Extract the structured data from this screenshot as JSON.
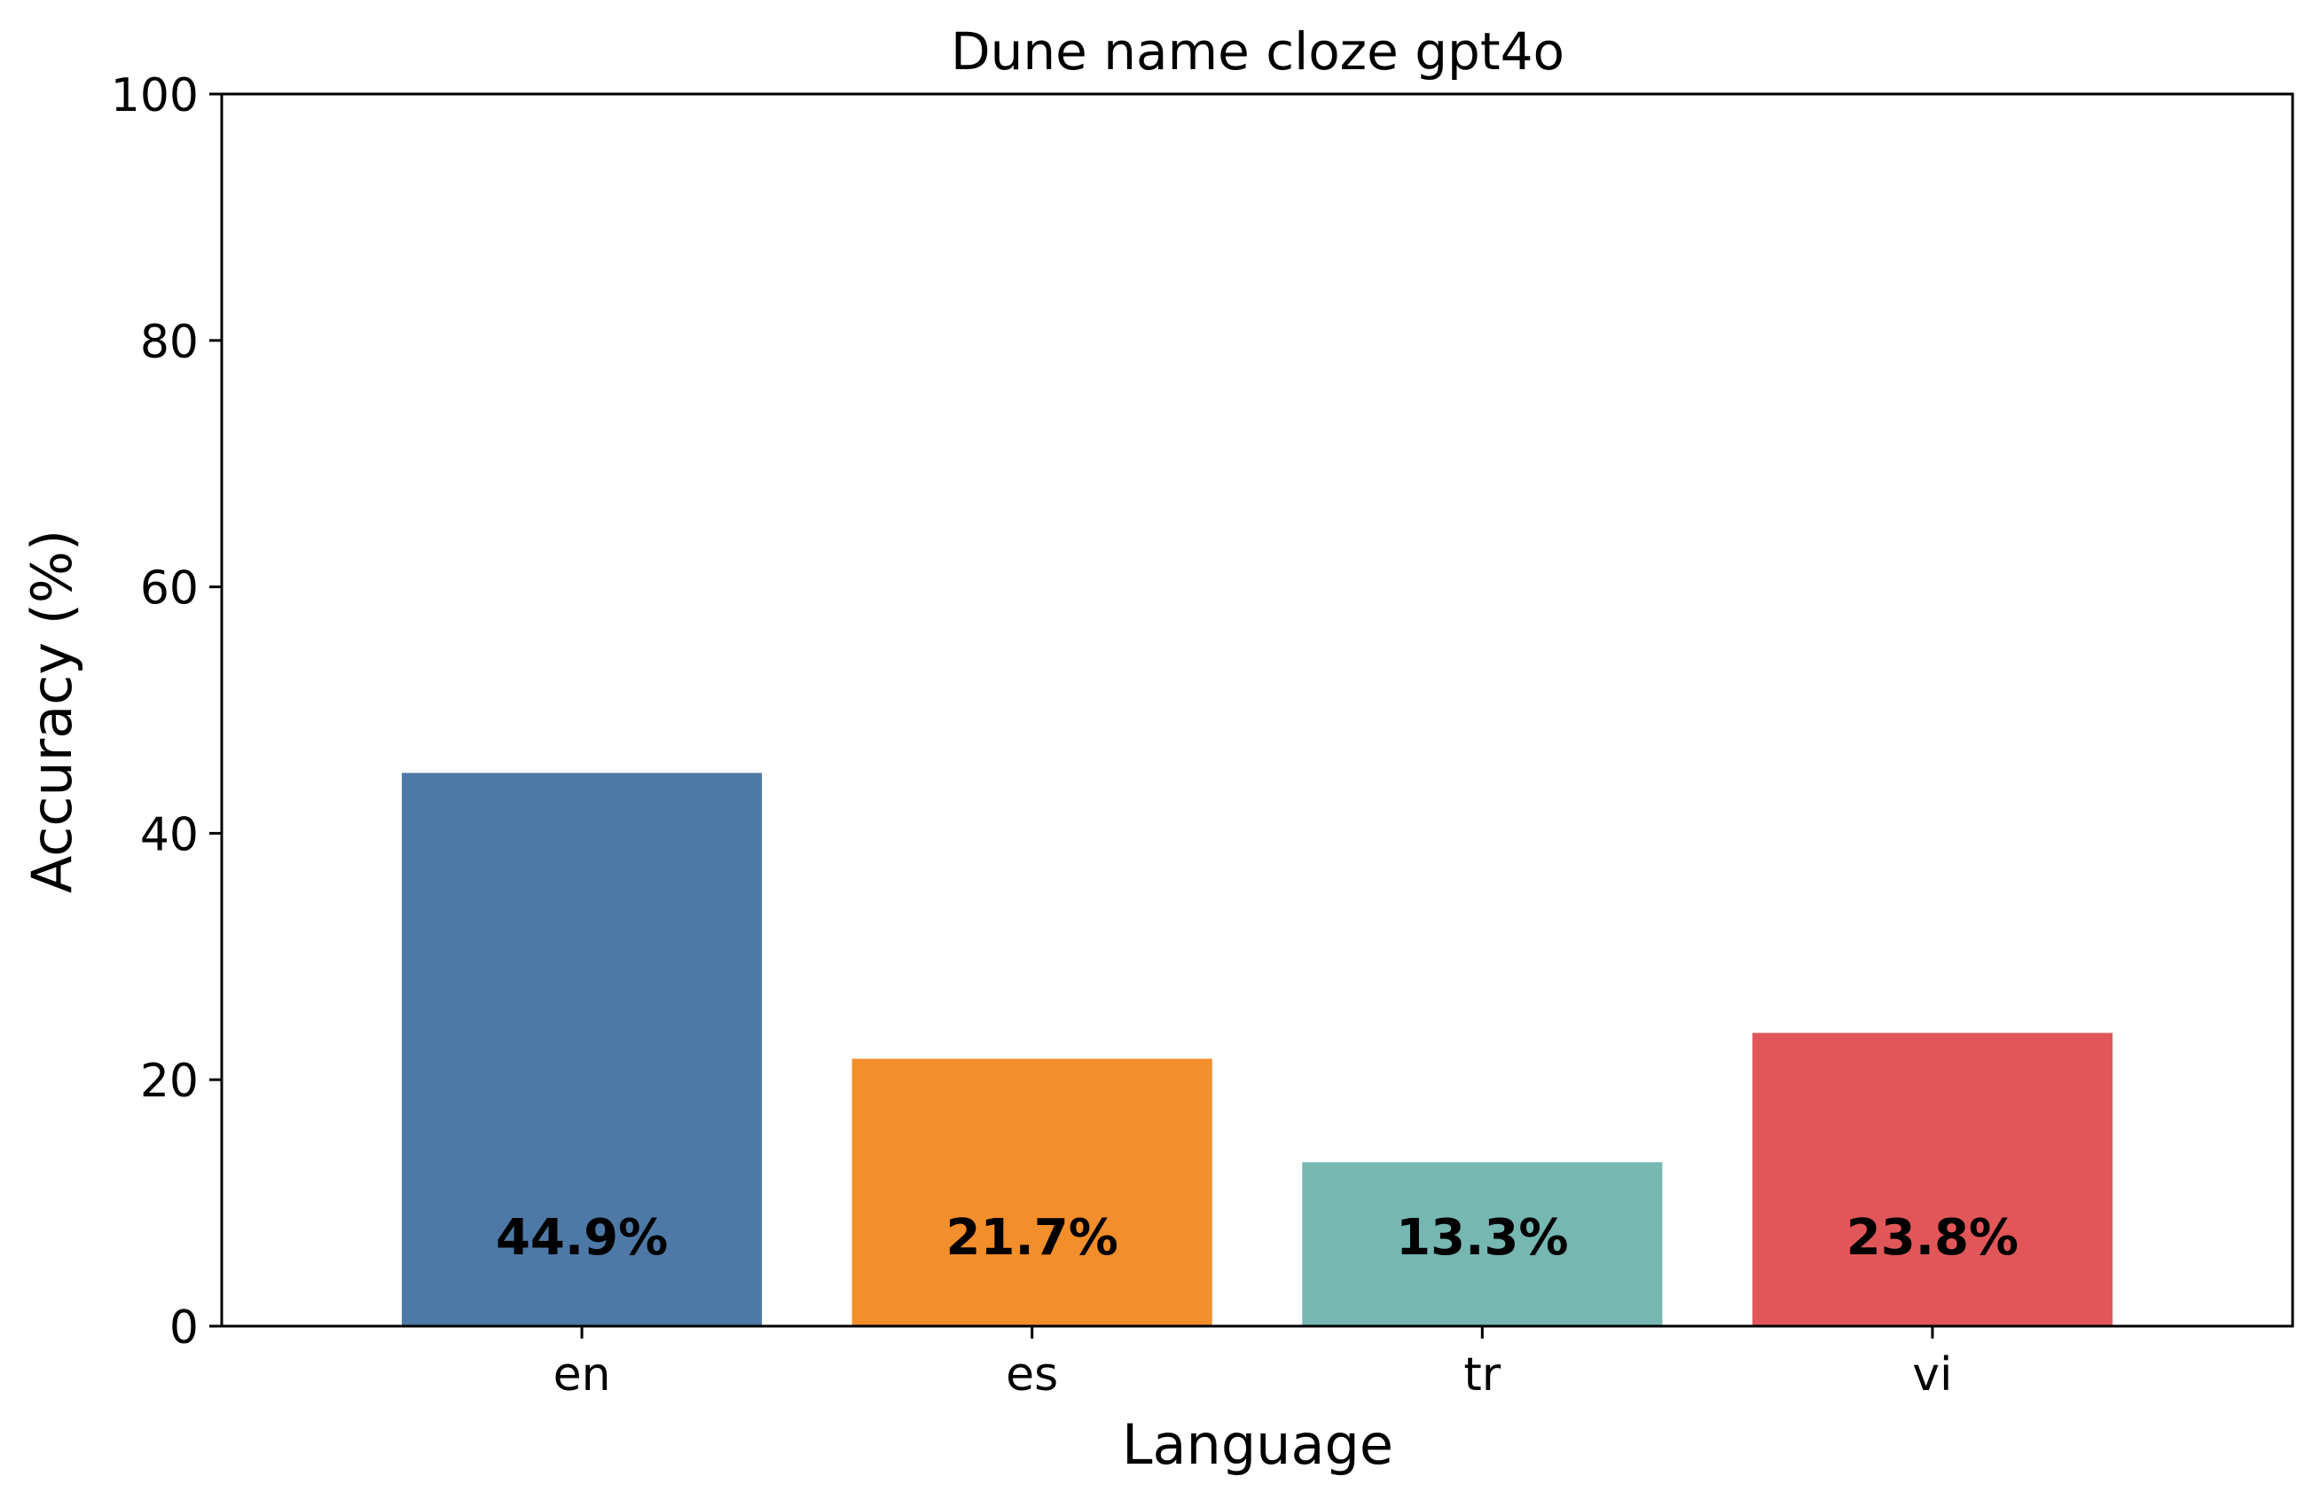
{
  "chart_data": {
    "type": "bar",
    "title": "Dune name cloze gpt4o",
    "xlabel": "Language",
    "ylabel": "Accuracy (%)",
    "categories": [
      "en",
      "es",
      "tr",
      "vi"
    ],
    "values": [
      44.9,
      21.7,
      13.3,
      23.8
    ],
    "data_labels": [
      "44.9%",
      "21.7%",
      "13.3%",
      "23.8%"
    ],
    "colors": [
      "#4e79a7",
      "#f28e2b",
      "#76b7b2",
      "#e15759"
    ],
    "ylim": [
      0,
      100
    ],
    "yticks": [
      0,
      20,
      40,
      60,
      80,
      100
    ],
    "grid": false,
    "legend": "none"
  }
}
